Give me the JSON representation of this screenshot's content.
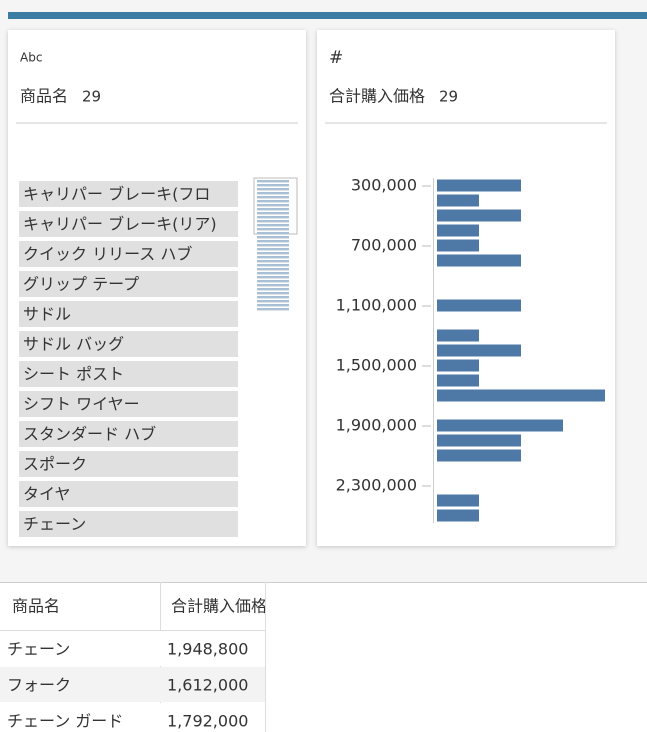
{
  "cards": [
    {
      "type_icon": "Abc",
      "title": "商品名",
      "count": 29,
      "values": [
        "キャリパー ブレーキ(フロ",
        "キャリパー ブレーキ(リア)",
        "クイック リリース ハブ",
        "グリップ テープ",
        "サドル",
        "サドル バッグ",
        "シート ポスト",
        "シフト ワイヤー",
        "スタンダード ハブ",
        "スポーク",
        "タイヤ",
        "チェーン"
      ]
    },
    {
      "type_icon": "#",
      "title": "合計購入価格",
      "count": 29
    }
  ],
  "chart_data": {
    "type": "histogram",
    "bins": [
      300000,
      400000,
      500000,
      600000,
      700000,
      800000,
      900000,
      1000000,
      1100000,
      1200000,
      1300000,
      1400000,
      1500000,
      1600000,
      1700000,
      1800000,
      1900000,
      2000000,
      2100000,
      2200000,
      2300000,
      2400000,
      2500000,
      2600000
    ],
    "values": [
      2,
      1,
      2,
      1,
      1,
      2,
      0,
      0,
      2,
      0,
      1,
      2,
      1,
      1,
      4,
      0,
      3,
      2,
      2,
      0,
      0,
      1,
      1
    ],
    "color": "#4e79a7",
    "ylim": [
      300000,
      2600000
    ],
    "yticks": [
      {
        "value": 300000,
        "label": "300,000"
      },
      {
        "value": 700000,
        "label": "700,000"
      },
      {
        "value": 1100000,
        "label": "1,100,000"
      },
      {
        "value": 1500000,
        "label": "1,500,000"
      },
      {
        "value": 1900000,
        "label": "1,900,000"
      },
      {
        "value": 2300000,
        "label": "2,300,000"
      }
    ]
  },
  "table": {
    "columns": [
      "商品名",
      "合計購入価格"
    ],
    "rows": [
      [
        "チェーン",
        "1,948,800"
      ],
      [
        "フォーク",
        "1,612,000"
      ],
      [
        "チェーン ガード",
        "1,792,000"
      ]
    ]
  }
}
